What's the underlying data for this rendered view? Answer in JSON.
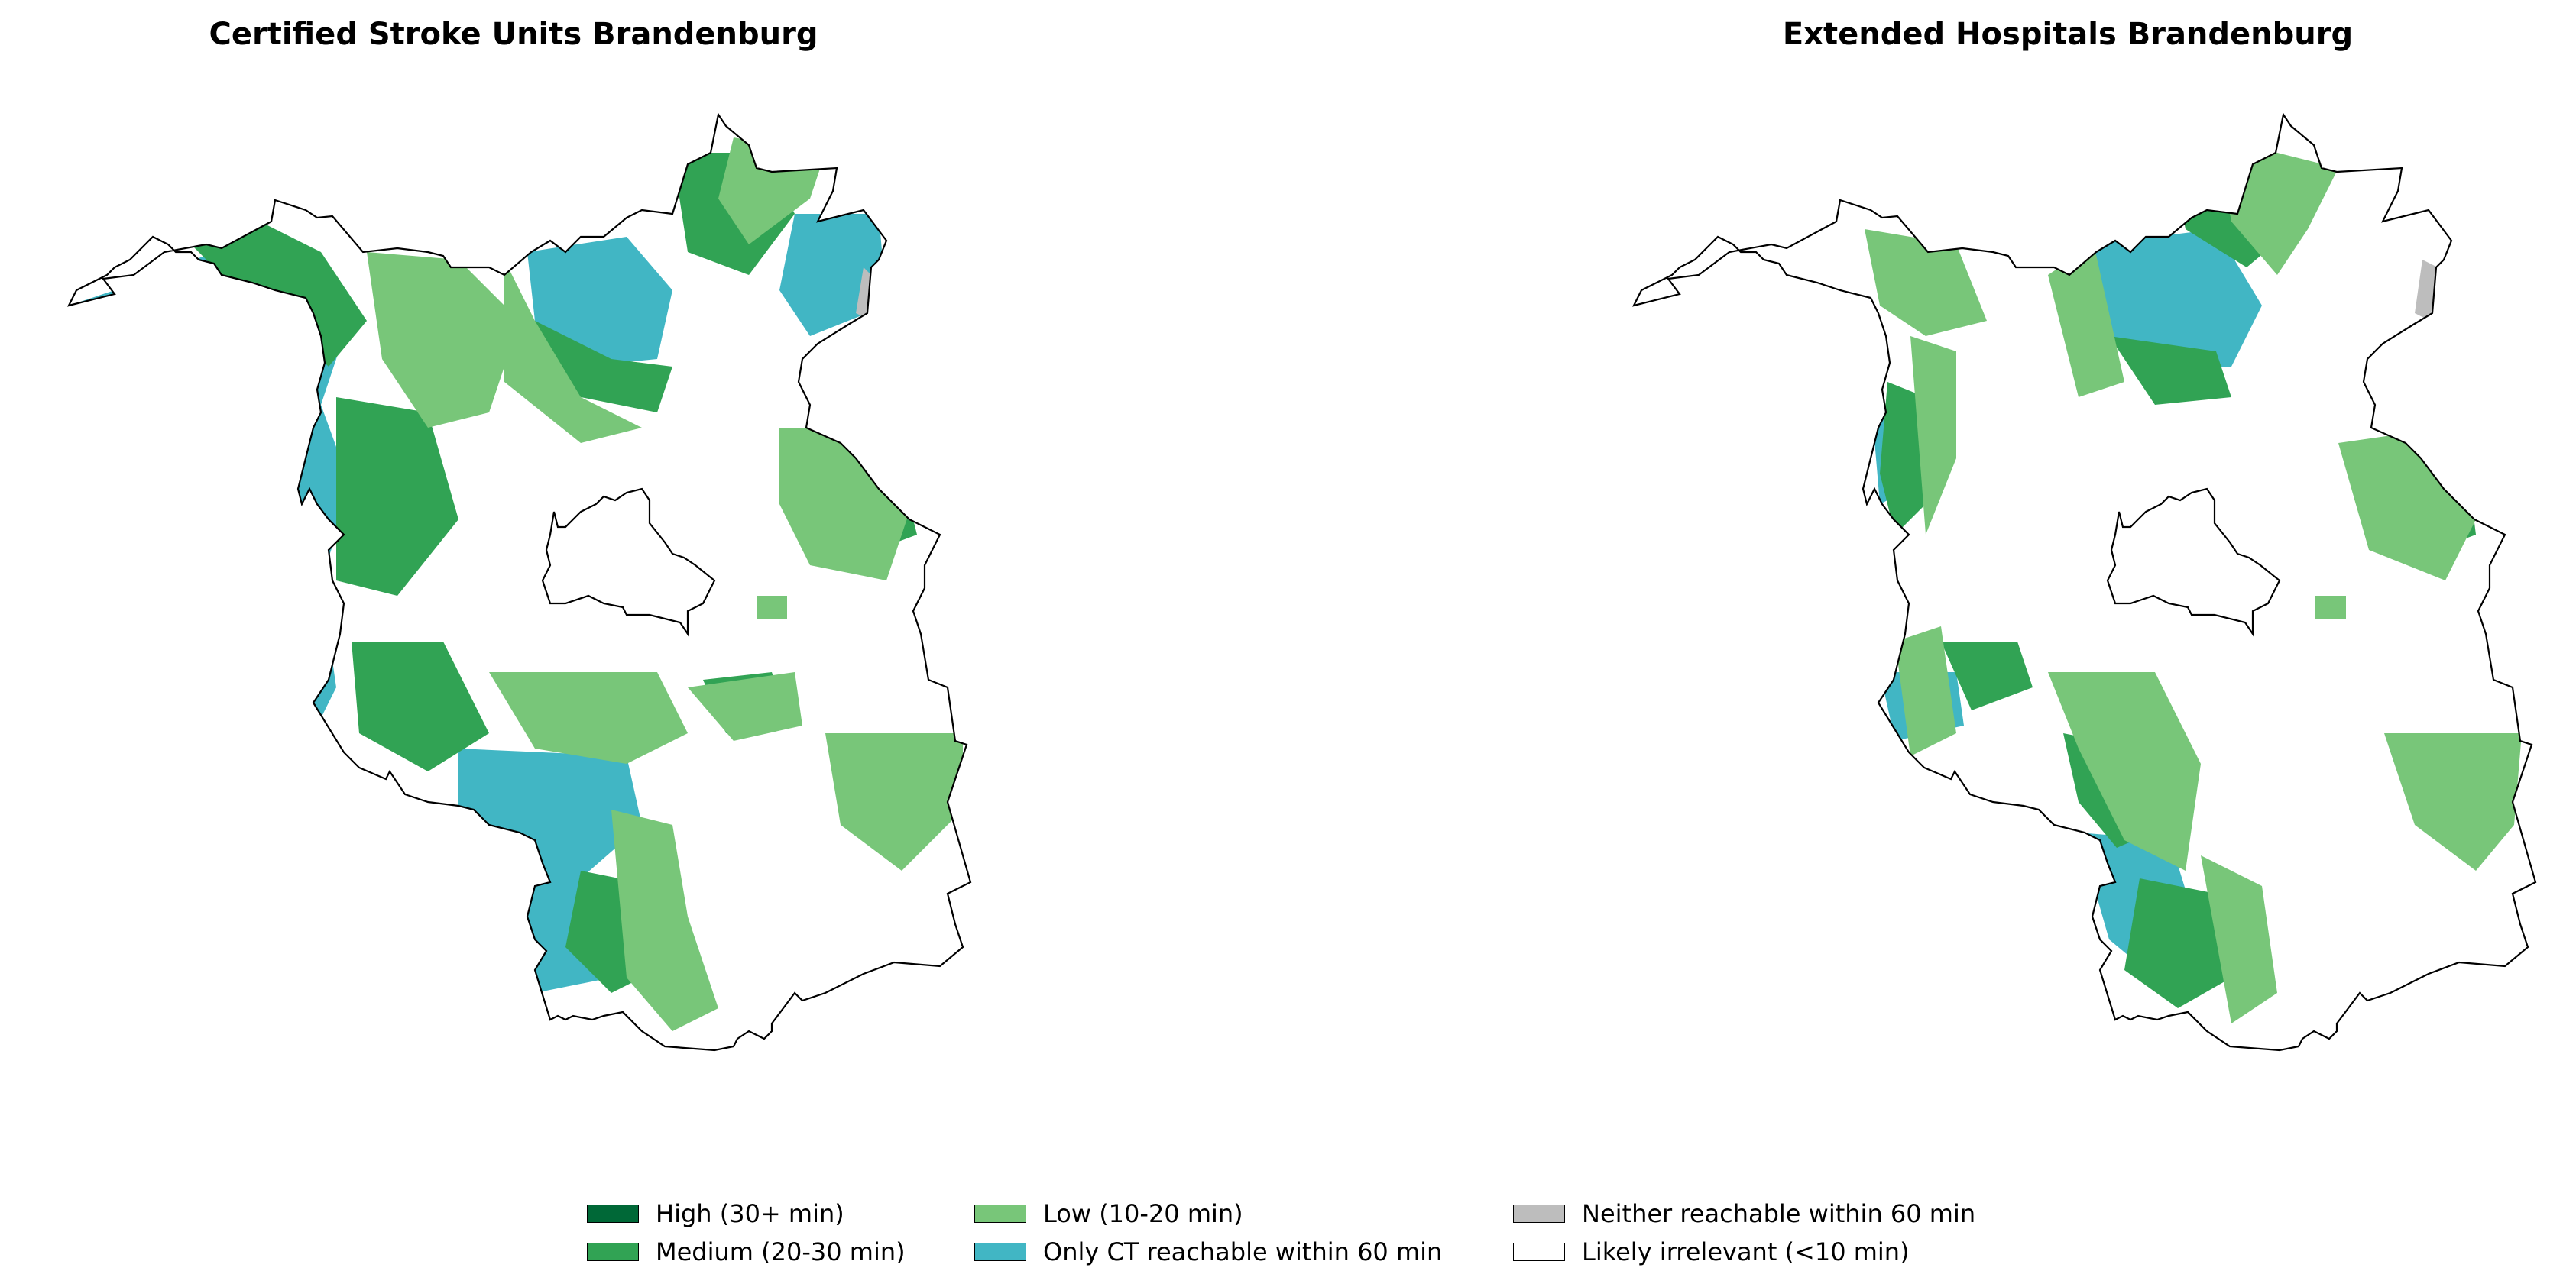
{
  "maps": [
    {
      "title": "Certified Stroke Units Brandenburg"
    },
    {
      "title": "Extended Hospitals Brandenburg"
    }
  ],
  "colors": {
    "high": "#006837",
    "medium": "#31a354",
    "low": "#78c679",
    "only_ct": "#41b6c4",
    "neither": "#bdbdbd",
    "irrelevant": "#ffffff",
    "outline": "#000000"
  },
  "legend": [
    {
      "label": "High (30+ min)",
      "color": "#006837"
    },
    {
      "label": "Medium (20-30 min)",
      "color": "#31a354"
    },
    {
      "label": "Low (10-20 min)",
      "color": "#78c679"
    },
    {
      "label": "Only CT reachable within 60 min",
      "color": "#41b6c4"
    },
    {
      "label": "Neither reachable within 60 min",
      "color": "#bdbdbd"
    },
    {
      "label": "Likely irrelevant (<10 min)",
      "color": "#ffffff"
    }
  ]
}
